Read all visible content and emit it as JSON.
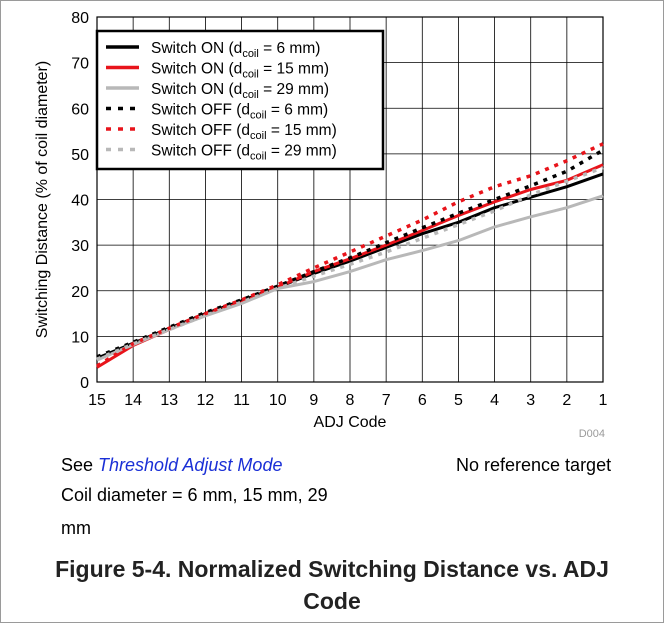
{
  "chart_data": {
    "type": "line",
    "xlabel": "ADJ Code",
    "ylabel": "Switching Distance (% of coil diameter)",
    "x": [
      15,
      14,
      13,
      12,
      11,
      10,
      9,
      8,
      7,
      6,
      5,
      4,
      3,
      2,
      1
    ],
    "xlim": [
      15,
      1
    ],
    "ylim": [
      0,
      80
    ],
    "yticks": [
      0,
      10,
      20,
      30,
      40,
      50,
      60,
      70,
      80
    ],
    "grid": true,
    "legend_position": "top-left",
    "code_label": "D004",
    "series": [
      {
        "name_main": "Switch ON (d",
        "name_sub": "coil",
        "name_tail": " = 6 mm)",
        "color": "#000000",
        "style": "solid",
        "values": [
          5.2,
          8.5,
          11.8,
          15.0,
          17.8,
          20.8,
          23.8,
          26.5,
          29.5,
          32.5,
          35.0,
          38.2,
          40.5,
          42.8,
          45.6
        ]
      },
      {
        "name_main": "Switch ON (d",
        "name_sub": "coil",
        "name_tail": " = 15 mm)",
        "color": "#e8141b",
        "style": "solid",
        "values": [
          3.2,
          8.0,
          11.5,
          14.8,
          17.5,
          20.8,
          24.2,
          27.0,
          30.0,
          33.2,
          36.5,
          39.5,
          42.2,
          44.2,
          47.6
        ]
      },
      {
        "name_main": "Switch ON (d",
        "name_sub": "coil",
        "name_tail": " = 29 mm)",
        "color": "#b8b8b8",
        "style": "solid",
        "values": [
          4.8,
          8.2,
          11.5,
          14.5,
          17.2,
          20.5,
          22.0,
          24.2,
          26.8,
          28.8,
          31.0,
          34.0,
          36.2,
          38.2,
          40.8
        ]
      },
      {
        "name_main": "Switch OFF (d",
        "name_sub": "coil",
        "name_tail": " = 6 mm)",
        "color": "#000000",
        "style": "dotted",
        "values": [
          5.5,
          8.7,
          12.0,
          15.2,
          18.0,
          21.0,
          24.2,
          27.2,
          30.5,
          33.8,
          37.0,
          40.0,
          43.0,
          46.2,
          50.8
        ]
      },
      {
        "name_main": "Switch OFF (d",
        "name_sub": "coil",
        "name_tail": " = 15 mm)",
        "color": "#e8141b",
        "style": "dotted",
        "values": [
          3.5,
          8.4,
          11.8,
          15.0,
          18.0,
          21.3,
          25.0,
          28.5,
          32.0,
          35.5,
          39.5,
          42.8,
          45.2,
          48.5,
          52.2
        ]
      },
      {
        "name_main": "Switch OFF (d",
        "name_sub": "coil",
        "name_tail": " = 29 mm)",
        "color": "#b8b8b8",
        "style": "dotted",
        "values": [
          5.0,
          8.3,
          11.5,
          14.6,
          17.5,
          20.5,
          23.2,
          25.8,
          28.5,
          31.5,
          34.5,
          37.5,
          41.0,
          44.0,
          47.0
        ]
      }
    ]
  },
  "notes": {
    "see_prefix": "See ",
    "link_text": "Threshold Adjust Mode",
    "right_note": "No reference target",
    "coil_line1": "Coil diameter = 6 mm, 15 mm, 29",
    "coil_line2": "mm"
  },
  "caption": {
    "line1": "Figure 5-4. Normalized Switching Distance vs. ADJ",
    "line2": "Code"
  }
}
